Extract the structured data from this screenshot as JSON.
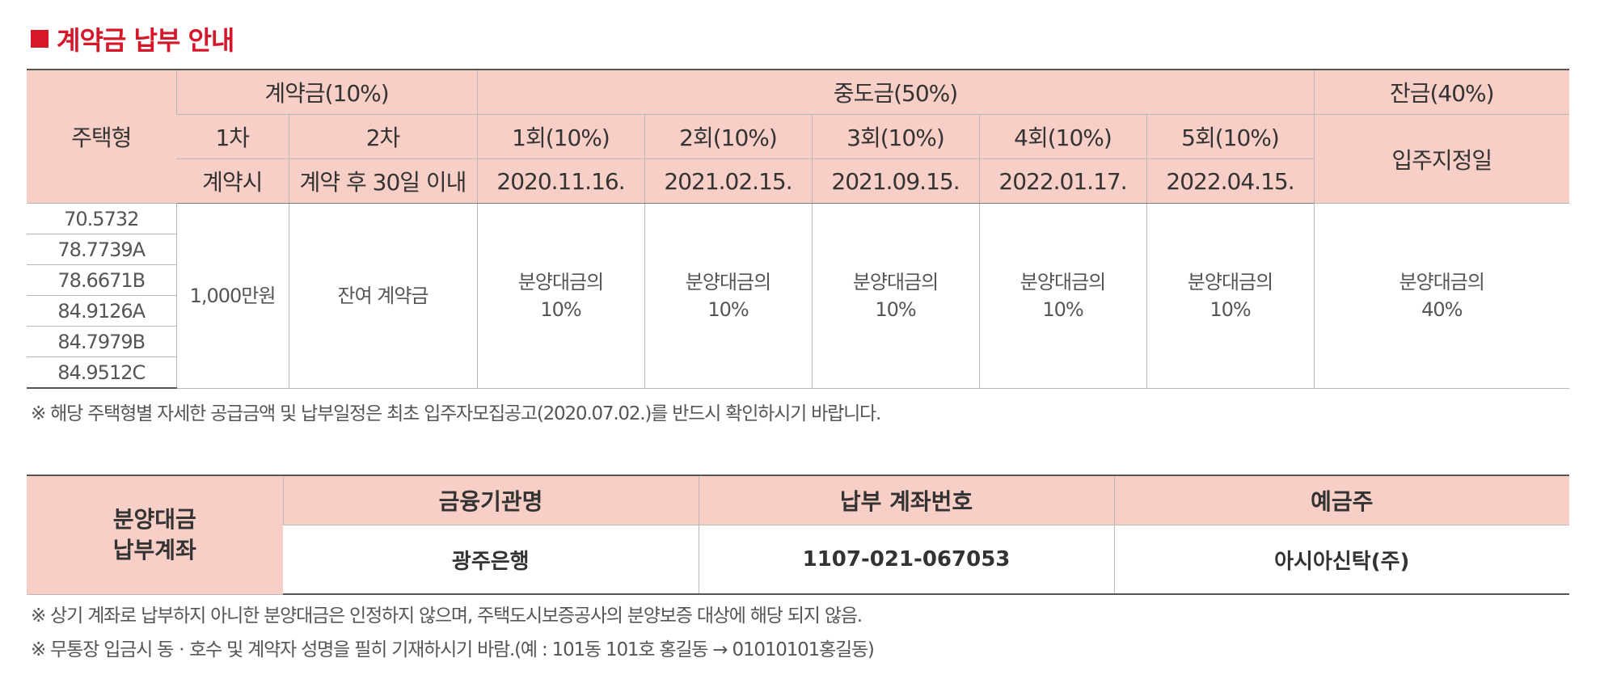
{
  "colors": {
    "accent": "#d6172a",
    "header_bg": "#f8cfc6",
    "text": "#333333"
  },
  "section": {
    "title": "계약금 납부 안내",
    "square_icon": "red-square-icon"
  },
  "payment_table": {
    "type_header": "주택형",
    "deposit_header": "계약금(10%)",
    "middle_header": "중도금(50%)",
    "balance_header": "잔금(40%)",
    "dep_1": "1차",
    "dep_2": "2차",
    "dep_1_when": "계약시",
    "dep_2_when": "계약 후 30일 이내",
    "balance_when": "입주지정일",
    "installments": [
      {
        "label": "1회(10%)",
        "date": "2020.11.16.",
        "amount_line1": "분양대금의",
        "amount_line2": "10%"
      },
      {
        "label": "2회(10%)",
        "date": "2021.02.15.",
        "amount_line1": "분양대금의",
        "amount_line2": "10%"
      },
      {
        "label": "3회(10%)",
        "date": "2021.09.15.",
        "amount_line1": "분양대금의",
        "amount_line2": "10%"
      },
      {
        "label": "4회(10%)",
        "date": "2022.01.17.",
        "amount_line1": "분양대금의",
        "amount_line2": "10%"
      },
      {
        "label": "5회(10%)",
        "date": "2022.04.15.",
        "amount_line1": "분양대금의",
        "amount_line2": "10%"
      }
    ],
    "housing_types": [
      "70.5732",
      "78.7739A",
      "78.6671B",
      "84.9126A",
      "84.7979B",
      "84.9512C"
    ],
    "dep_1_amount": "1,000만원",
    "dep_2_amount": "잔여 계약금",
    "balance_amount_line1": "분양대금의",
    "balance_amount_line2": "40%"
  },
  "note_1": "※ 해당 주택형별 자세한 공급금액 및 납부일정은 최초 입주자모집공고(2020.07.02.)를 반드시 확인하시기 바랍니다.",
  "account_table": {
    "side_label_line1": "분양대금",
    "side_label_line2": "납부계좌",
    "bank_header": "금융기관명",
    "account_header": "납부 계좌번호",
    "holder_header": "예금주",
    "bank": "광주은행",
    "account_number": "1107-021-067053",
    "holder": "아시아신탁(주)"
  },
  "note_2": "※ 상기 계좌로 납부하지 아니한 분양대금은 인정하지 않으며, 주택도시보증공사의 분양보증 대상에 해당 되지 않음.",
  "note_3": "※ 무통장 입금시 동ㆍ호수 및 계약자 성명을 필히 기재하시기 바람.(예 : 101동 101호 홍길동 → 01010101홍길동)"
}
